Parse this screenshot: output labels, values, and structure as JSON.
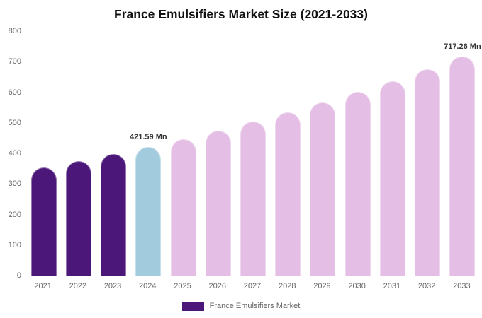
{
  "title": "France Emulsifiers Market Size (2021-2033)",
  "legend": {
    "label": "France Emulsifiers Market",
    "swatch_color": "#4B1879"
  },
  "colors": {
    "past": "#4B1879",
    "current": "#A3CBDE",
    "forecast": "#E5BEE5",
    "axis_line": "#D8D8D8",
    "tick_label": "#666666",
    "value_label": "#333333",
    "title_text": "#111111"
  },
  "chart_data": {
    "type": "bar",
    "title": "France Emulsifiers Market Size (2021-2033)",
    "xlabel": "",
    "ylabel": "",
    "categories": [
      "2021",
      "2022",
      "2023",
      "2024",
      "2025",
      "2026",
      "2027",
      "2028",
      "2029",
      "2030",
      "2031",
      "2032",
      "2033"
    ],
    "values": [
      353,
      375,
      398,
      421.59,
      447,
      474,
      503,
      534,
      566,
      601,
      637,
      676,
      717.26
    ],
    "point_labels": [
      null,
      null,
      null,
      "421.59 Mn",
      null,
      null,
      null,
      null,
      null,
      null,
      null,
      null,
      "717.26 Mn"
    ],
    "bar_roles": [
      "past",
      "past",
      "past",
      "current",
      "forecast",
      "forecast",
      "forecast",
      "forecast",
      "forecast",
      "forecast",
      "forecast",
      "forecast",
      "forecast"
    ],
    "ylim": [
      0,
      800
    ],
    "yticks": [
      0,
      100,
      200,
      300,
      400,
      500,
      600,
      700,
      800
    ],
    "grid": false,
    "legend_position": "bottom",
    "legend_entries": [
      "France Emulsifiers Market"
    ]
  }
}
